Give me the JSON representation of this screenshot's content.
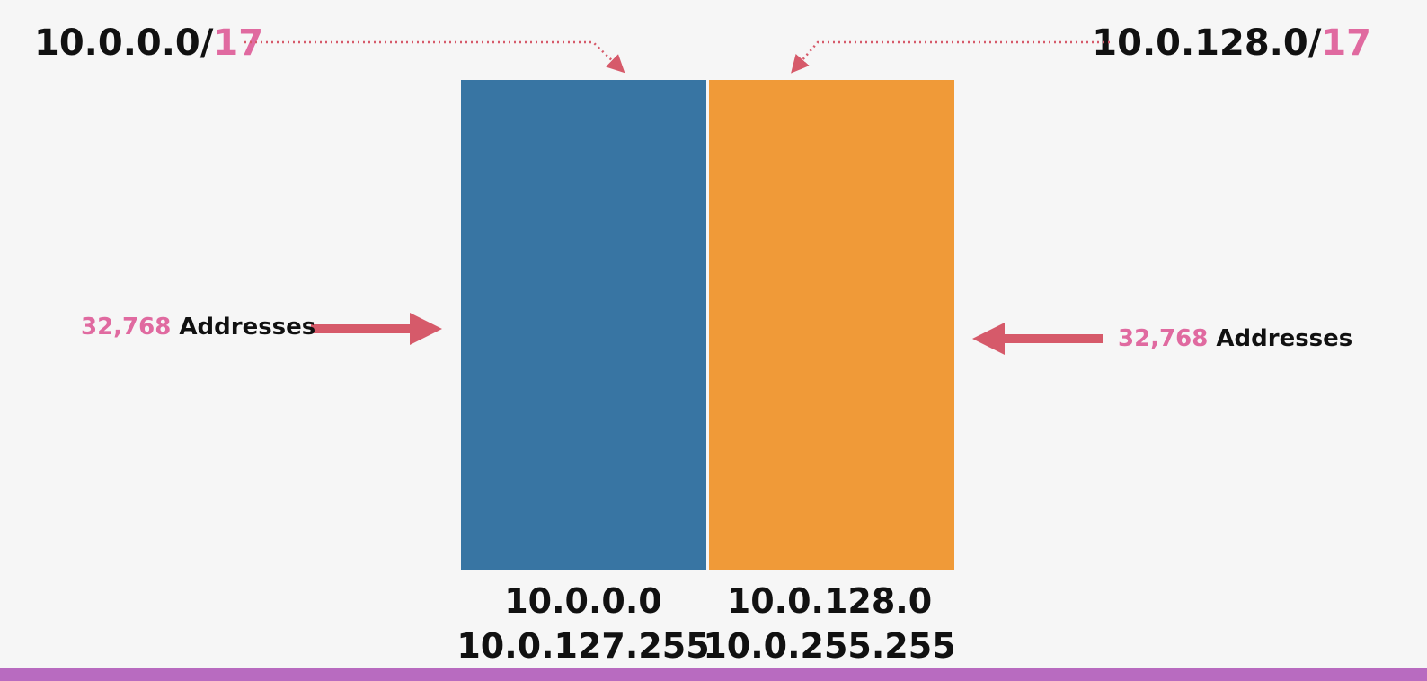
{
  "subnets": [
    {
      "network": "10.0.0.0",
      "prefix": "17",
      "addresses_count": "32,768",
      "addresses_label": "Addresses",
      "first_address": "10.0.0.0",
      "last_address": "10.0.127.255",
      "color": "#3875a3"
    },
    {
      "network": "10.0.128.0",
      "prefix": "17",
      "addresses_count": "32,768",
      "addresses_label": "Addresses",
      "first_address": "10.0.128.0",
      "last_address": "10.0.255.255",
      "color": "#f09a38"
    }
  ],
  "colors": {
    "accent_pink": "#e06aa0",
    "arrow_red": "#d65a6a",
    "background": "#f6f6f6",
    "bottom_bar": "#b86bc0"
  }
}
